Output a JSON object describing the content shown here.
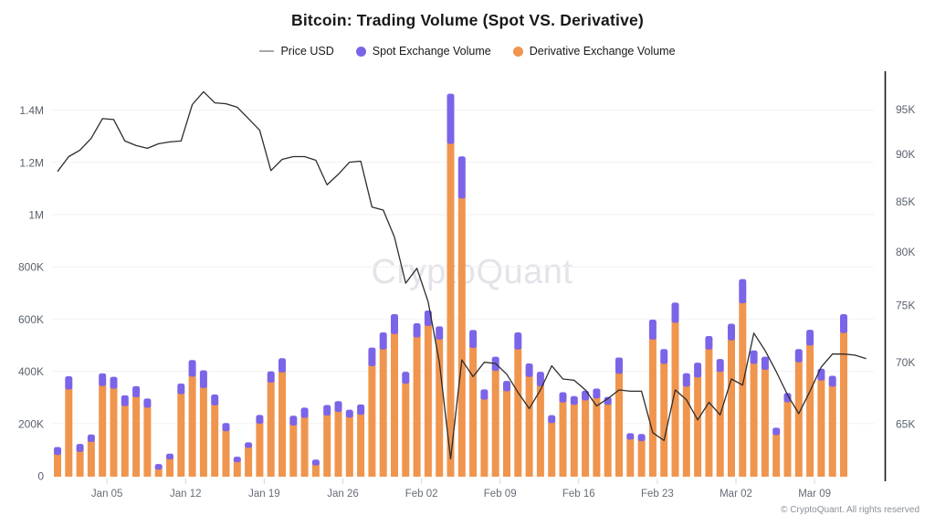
{
  "title": "Bitcoin: Trading Volume (Spot VS. Derivative)",
  "watermark": "CryptoQuant",
  "attribution": "© CryptoQuant. All rights reserved",
  "legend": [
    {
      "label": "Price USD",
      "type": "line",
      "color": "#a6a6ad"
    },
    {
      "label": "Spot Exchange Volume",
      "type": "dot",
      "color": "#7c64e8"
    },
    {
      "label": "Derivative Exchange Volume",
      "type": "dot",
      "color": "#f0954e"
    }
  ],
  "chart_data": {
    "type": "bar",
    "subtype": "stacked-bars-with-line",
    "title": "Bitcoin: Trading Volume (Spot VS. Derivative)",
    "grid": true,
    "legend_position": "top",
    "x_tick_labels": [
      "Jan 05",
      "Jan 12",
      "Jan 19",
      "Jan 26",
      "Feb 02",
      "Feb 09",
      "Feb 16",
      "Feb 23",
      "Mar 02",
      "Mar 09"
    ],
    "x_tick_day_index": [
      4,
      11,
      18,
      25,
      32,
      39,
      46,
      53,
      60,
      67
    ],
    "left_axis": {
      "scale": "linear",
      "range": [
        0,
        1450000
      ],
      "tick_labels": [
        "0",
        "200K",
        "400K",
        "600K",
        "800K",
        "1M",
        "1.2M",
        "1.4M"
      ],
      "tick_values": [
        0,
        200000,
        400000,
        600000,
        800000,
        1000000,
        1200000,
        1400000
      ]
    },
    "right_axis": {
      "scale": "log",
      "range": [
        60800,
        98000
      ],
      "tick_labels": [
        "65K",
        "70K",
        "75K",
        "80K",
        "85K",
        "90K",
        "95K"
      ],
      "tick_values": [
        65000,
        70000,
        75000,
        80000,
        85000,
        90000,
        95000
      ]
    },
    "series": [
      {
        "name": "Spot Exchange Volume",
        "type": "bar",
        "stack": "volume",
        "axis": "left",
        "color": "#7c64e8",
        "values": [
          20000,
          40000,
          20000,
          18000,
          38000,
          35000,
          31000,
          32000,
          25000,
          11000,
          12000,
          30000,
          53000,
          58000,
          31000,
          21000,
          11000,
          11000,
          23000,
          33000,
          44000,
          27000,
          29000,
          12000,
          30000,
          31000,
          20000,
          29000,
          61000,
          55000,
          66000,
          35000,
          44000,
          49000,
          40000,
          182000,
          151000,
          58000,
          29000,
          44000,
          29000,
          55000,
          41000,
          45000,
          20000,
          29000,
          23000,
          27000,
          27000,
          20000,
          52000,
          14000,
          17000,
          66000,
          46000,
          67000,
          41000,
          46000,
          41000,
          39000,
          53000,
          82000,
          41000,
          40000,
          18000,
          25000,
          40000,
          50000,
          35000,
          31000,
          62000
        ]
      },
      {
        "name": "Derivative Exchange Volume",
        "type": "bar",
        "stack": "volume",
        "axis": "left",
        "color": "#f0954e",
        "values": [
          90000,
          341000,
          102000,
          140000,
          354000,
          344000,
          277000,
          311000,
          271000,
          34000,
          73000,
          323000,
          390000,
          346000,
          280000,
          181000,
          62000,
          117000,
          210000,
          367000,
          406000,
          203000,
          232000,
          50000,
          241000,
          255000,
          233000,
          244000,
          430000,
          494000,
          553000,
          363000,
          540000,
          584000,
          532000,
          1281000,
          1072000,
          500000,
          302000,
          412000,
          334000,
          494000,
          389000,
          353000,
          212000,
          291000,
          282000,
          299000,
          307000,
          282000,
          401000,
          149000,
          143000,
          532000,
          439000,
          596000,
          352000,
          387000,
          494000,
          408000,
          529000,
          671000,
          439000,
          416000,
          166000,
          292000,
          445000,
          509000,
          375000,
          352000,
          557000
        ]
      },
      {
        "name": "Price USD",
        "type": "line",
        "axis": "right",
        "color": "#2d2d2d",
        "values": [
          88100,
          89700,
          90400,
          91700,
          93900,
          93800,
          91400,
          90900,
          90600,
          91100,
          91300,
          91400,
          95500,
          97000,
          95700,
          95600,
          95200,
          93900,
          92600,
          88200,
          89400,
          89700,
          89700,
          89300,
          86700,
          87800,
          89100,
          89200,
          84400,
          84100,
          81400,
          77000,
          78400,
          75300,
          70000,
          62300,
          70200,
          68800,
          70000,
          69900,
          69000,
          67500,
          66200,
          67700,
          69700,
          68600,
          68500,
          67700,
          66400,
          67000,
          67700,
          67600,
          67600,
          64300,
          63700,
          67700,
          66900,
          65300,
          66700,
          65700,
          68600,
          68100,
          72500,
          71000,
          69200,
          67300,
          65800,
          67600,
          69600,
          70700,
          70700,
          70600,
          70300
        ]
      }
    ]
  }
}
